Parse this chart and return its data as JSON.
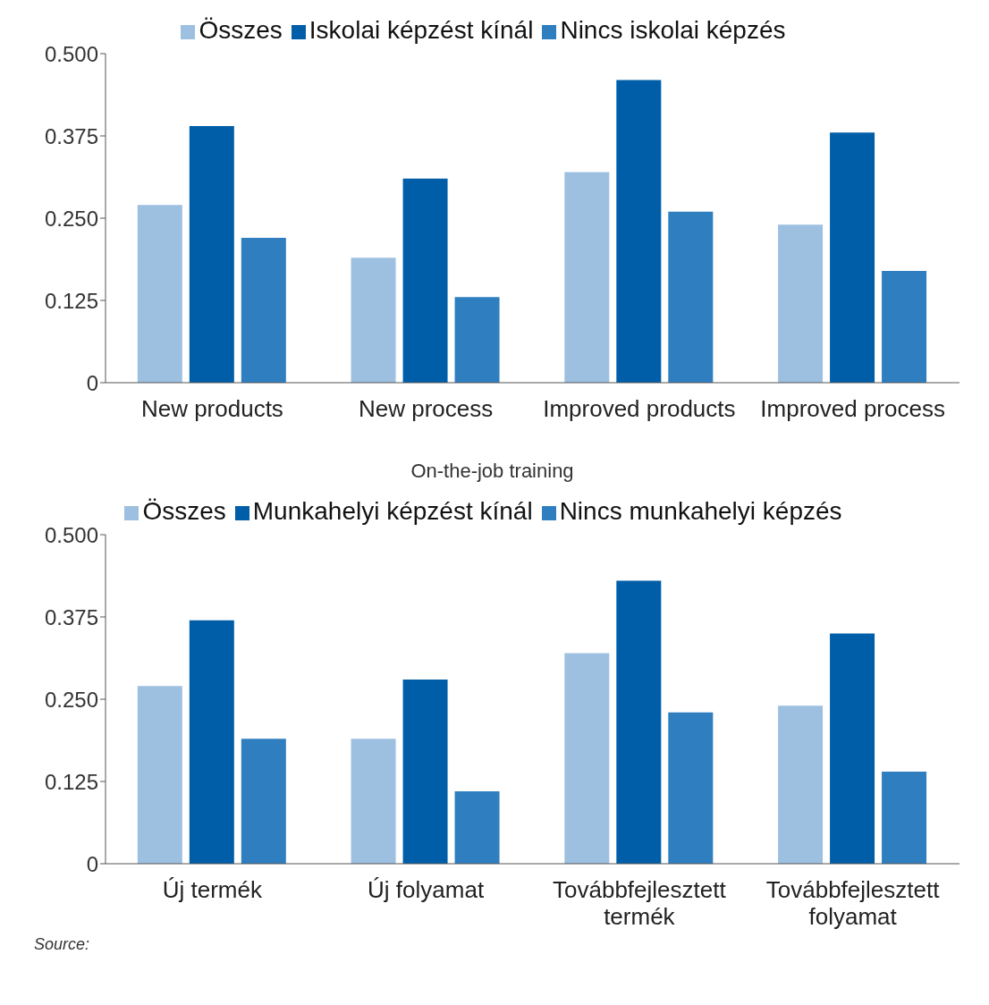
{
  "chart_data": [
    {
      "type": "bar",
      "categories": [
        "New products",
        "New process",
        "Improved products",
        "Improved process"
      ],
      "series": [
        {
          "name": "Összes",
          "color": "#9dc0e0",
          "values": [
            0.27,
            0.19,
            0.32,
            0.24
          ]
        },
        {
          "name": "Iskolai képzést kínál",
          "color": "#005ea8",
          "values": [
            0.39,
            0.31,
            0.46,
            0.38
          ]
        },
        {
          "name": "Nincs iskolai képzés",
          "color": "#2f7ebf",
          "values": [
            0.22,
            0.13,
            0.26,
            0.17
          ]
        }
      ],
      "ylim": [
        0,
        0.5
      ],
      "yticks": [
        0,
        {
          "value": 0.125,
          "label": "0.125"
        },
        {
          "value": 0.25,
          "label": "0.250"
        },
        {
          "value": 0.375,
          "label": "0.375"
        },
        {
          "value": 0.5,
          "label": "0.500"
        }
      ],
      "legend": "top",
      "grid": false
    },
    {
      "type": "bar",
      "title": "On-the-job training",
      "categories": [
        "Új termék",
        "Új folyamat",
        "Továbbfejlesztett termék",
        "Továbbfejlesztett folyamat"
      ],
      "series": [
        {
          "name": "Összes",
          "color": "#9dc0e0",
          "values": [
            0.27,
            0.19,
            0.32,
            0.24
          ]
        },
        {
          "name": "Munkahelyi képzést kínál",
          "color": "#005ea8",
          "values": [
            0.37,
            0.28,
            0.43,
            0.35
          ]
        },
        {
          "name": "Nincs munkahelyi képzés",
          "color": "#2f7ebf",
          "values": [
            0.19,
            0.11,
            0.23,
            0.14
          ]
        }
      ],
      "ylim": [
        0,
        0.5
      ],
      "yticks": [
        0,
        {
          "value": 0.125,
          "label": "0.125"
        },
        {
          "value": 0.25,
          "label": "0.250"
        },
        {
          "value": 0.375,
          "label": "0.375"
        },
        {
          "value": 0.5,
          "label": "0.500"
        }
      ],
      "legend": "top",
      "grid": false,
      "annotations": [
        "Source:"
      ]
    }
  ]
}
